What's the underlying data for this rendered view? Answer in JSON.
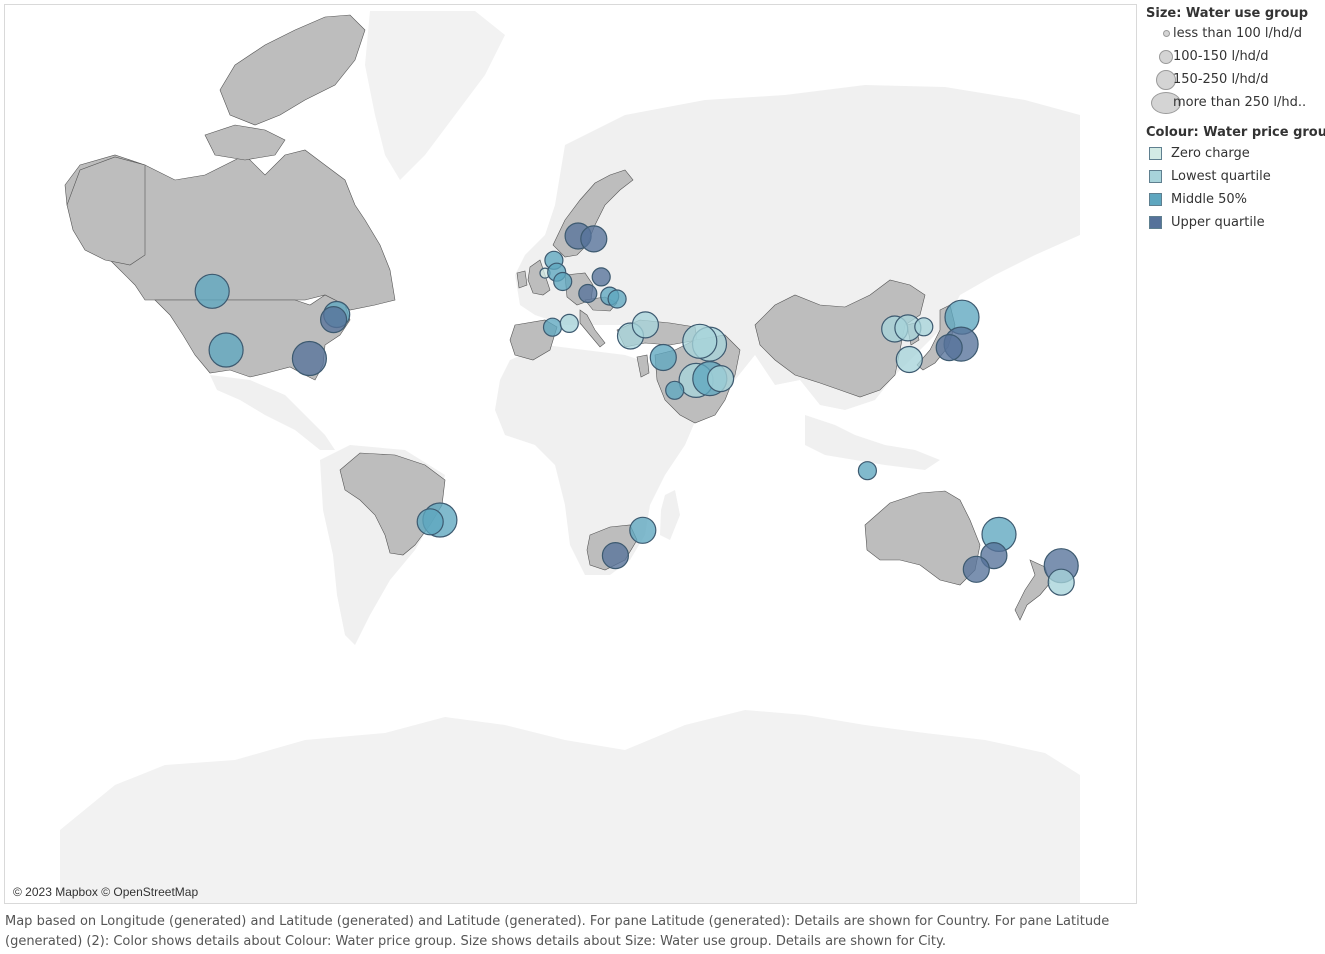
{
  "map": {
    "attribution": "© 2023 Mapbox © OpenStreetMap",
    "colors": {
      "ocean": "#ffffff",
      "land_unselected": "#f0f0f0",
      "land_selected": "#bdbdbd"
    },
    "highlighted_countries": [
      "Canada",
      "United States",
      "Brazil",
      "United Kingdom",
      "Ireland",
      "Norway",
      "Sweden",
      "Germany",
      "Austria",
      "Hungary",
      "Spain",
      "Italy",
      "Greece",
      "Turkey",
      "Cyprus",
      "Israel",
      "Saudi Arabia",
      "United Arab Emirates",
      "Qatar",
      "Kuwait",
      "Iran",
      "South Africa",
      "China",
      "Japan",
      "South Korea",
      "Australia",
      "New Zealand"
    ],
    "cities": [
      {
        "lon": -123.1,
        "lat": 49.3,
        "size_group": "more than 250 l/hd..",
        "price_group": "Middle 50%"
      },
      {
        "lon": -118.2,
        "lat": 34.0,
        "size_group": "more than 250 l/hd..",
        "price_group": "Middle 50%"
      },
      {
        "lon": -89.0,
        "lat": 31.5,
        "size_group": "more than 250 l/hd..",
        "price_group": "Upper quartile"
      },
      {
        "lon": -79.4,
        "lat": 43.7,
        "size_group": "150-250 l/hd/d",
        "price_group": "Middle 50%"
      },
      {
        "lon": -80.5,
        "lat": 42.4,
        "size_group": "150-250 l/hd/d",
        "price_group": "Upper quartile"
      },
      {
        "lon": -43.2,
        "lat": -22.9,
        "size_group": "more than 250 l/hd..",
        "price_group": "Middle 50%"
      },
      {
        "lon": -46.6,
        "lat": -23.5,
        "size_group": "150-250 l/hd/d",
        "price_group": "Middle 50%"
      },
      {
        "lon": -6.3,
        "lat": 53.3,
        "size_group": "less than 100 l/hd/d",
        "price_group": "Zero charge"
      },
      {
        "lon": -3.2,
        "lat": 55.9,
        "size_group": "100-150 l/hd/d",
        "price_group": "Middle 50%"
      },
      {
        "lon": -2.2,
        "lat": 53.5,
        "size_group": "100-150 l/hd/d",
        "price_group": "Middle 50%"
      },
      {
        "lon": -0.1,
        "lat": 51.5,
        "size_group": "100-150 l/hd/d",
        "price_group": "Middle 50%"
      },
      {
        "lon": 5.3,
        "lat": 60.4,
        "size_group": "150-250 l/hd/d",
        "price_group": "Upper quartile"
      },
      {
        "lon": 10.8,
        "lat": 59.9,
        "size_group": "150-250 l/hd/d",
        "price_group": "Upper quartile"
      },
      {
        "lon": 13.4,
        "lat": 52.5,
        "size_group": "100-150 l/hd/d",
        "price_group": "Upper quartile"
      },
      {
        "lon": 8.7,
        "lat": 48.8,
        "size_group": "100-150 l/hd/d",
        "price_group": "Upper quartile"
      },
      {
        "lon": 16.4,
        "lat": 48.2,
        "size_group": "100-150 l/hd/d",
        "price_group": "Middle 50%"
      },
      {
        "lon": 19.0,
        "lat": 47.5,
        "size_group": "100-150 l/hd/d",
        "price_group": "Middle 50%"
      },
      {
        "lon": -3.7,
        "lat": 40.4,
        "size_group": "100-150 l/hd/d",
        "price_group": "Middle 50%"
      },
      {
        "lon": 2.2,
        "lat": 41.4,
        "size_group": "100-150 l/hd/d",
        "price_group": "Lowest quartile"
      },
      {
        "lon": 23.7,
        "lat": 38.0,
        "size_group": "150-250 l/hd/d",
        "price_group": "Lowest quartile"
      },
      {
        "lon": 28.9,
        "lat": 41.0,
        "size_group": "150-250 l/hd/d",
        "price_group": "Lowest quartile"
      },
      {
        "lon": 35.2,
        "lat": 31.8,
        "size_group": "150-250 l/hd/d",
        "price_group": "Middle 50%"
      },
      {
        "lon": 51.4,
        "lat": 35.7,
        "size_group": "more than 250 l/hd..",
        "price_group": "Lowest quartile"
      },
      {
        "lon": 48.0,
        "lat": 36.5,
        "size_group": "more than 250 l/hd..",
        "price_group": "Lowest quartile"
      },
      {
        "lon": 46.7,
        "lat": 24.7,
        "size_group": "more than 250 l/hd..",
        "price_group": "Lowest quartile"
      },
      {
        "lon": 51.5,
        "lat": 25.3,
        "size_group": "more than 250 l/hd..",
        "price_group": "Middle 50%"
      },
      {
        "lon": 55.3,
        "lat": 25.3,
        "size_group": "150-250 l/hd/d",
        "price_group": "Lowest quartile"
      },
      {
        "lon": 39.2,
        "lat": 21.5,
        "size_group": "100-150 l/hd/d",
        "price_group": "Middle 50%"
      },
      {
        "lon": 18.4,
        "lat": -33.9,
        "size_group": "150-250 l/hd/d",
        "price_group": "Upper quartile"
      },
      {
        "lon": 28.0,
        "lat": -26.2,
        "size_group": "150-250 l/hd/d",
        "price_group": "Middle 50%"
      },
      {
        "lon": 116.4,
        "lat": 39.9,
        "size_group": "150-250 l/hd/d",
        "price_group": "Lowest quartile"
      },
      {
        "lon": 121.5,
        "lat": 31.2,
        "size_group": "150-250 l/hd/d",
        "price_group": "Lowest quartile"
      },
      {
        "lon": 121.0,
        "lat": 40.2,
        "size_group": "150-250 l/hd/d",
        "price_group": "Lowest quartile"
      },
      {
        "lon": 126.6,
        "lat": 40.5,
        "size_group": "100-150 l/hd/d",
        "price_group": "Lowest quartile"
      },
      {
        "lon": 140.0,
        "lat": 43.0,
        "size_group": "more than 250 l/hd..",
        "price_group": "Middle 50%"
      },
      {
        "lon": 139.7,
        "lat": 35.7,
        "size_group": "more than 250 l/hd..",
        "price_group": "Upper quartile"
      },
      {
        "lon": 135.5,
        "lat": 34.7,
        "size_group": "150-250 l/hd/d",
        "price_group": "Upper quartile"
      },
      {
        "lon": 106.8,
        "lat": -6.2,
        "size_group": "100-150 l/hd/d",
        "price_group": "Middle 50%"
      },
      {
        "lon": 153.0,
        "lat": -27.5,
        "size_group": "more than 250 l/hd..",
        "price_group": "Middle 50%"
      },
      {
        "lon": 151.2,
        "lat": -33.9,
        "size_group": "150-250 l/hd/d",
        "price_group": "Upper quartile"
      },
      {
        "lon": 145.0,
        "lat": -37.8,
        "size_group": "150-250 l/hd/d",
        "price_group": "Upper quartile"
      },
      {
        "lon": 174.8,
        "lat": -36.8,
        "size_group": "more than 250 l/hd..",
        "price_group": "Upper quartile"
      },
      {
        "lon": 174.8,
        "lat": -41.3,
        "size_group": "150-250 l/hd/d",
        "price_group": "Lowest quartile"
      }
    ]
  },
  "legend": {
    "size_title": "Size: Water use group",
    "size_items": [
      {
        "label": "less than 100 l/hd/d"
      },
      {
        "label": "100-150 l/hd/d"
      },
      {
        "label": "150-250 l/hd/d"
      },
      {
        "label": "more than 250 l/hd.."
      }
    ],
    "colour_title": "Colour: Water price group",
    "colour_items": [
      {
        "label": "Zero charge",
        "color": "#d3ebe5"
      },
      {
        "label": "Lowest quartile",
        "color": "#a7d3da"
      },
      {
        "label": "Middle 50%",
        "color": "#5ea6bf"
      },
      {
        "label": "Upper quartile",
        "color": "#56729a"
      }
    ]
  },
  "caption": "Map based on Longitude (generated) and Latitude (generated) and Latitude (generated).  For pane Latitude (generated):  Details are shown for Country.  For pane Latitude (generated) (2):  Color shows details about Colour: Water price group.  Size shows details about Size: Water use group.  Details are shown for City."
}
